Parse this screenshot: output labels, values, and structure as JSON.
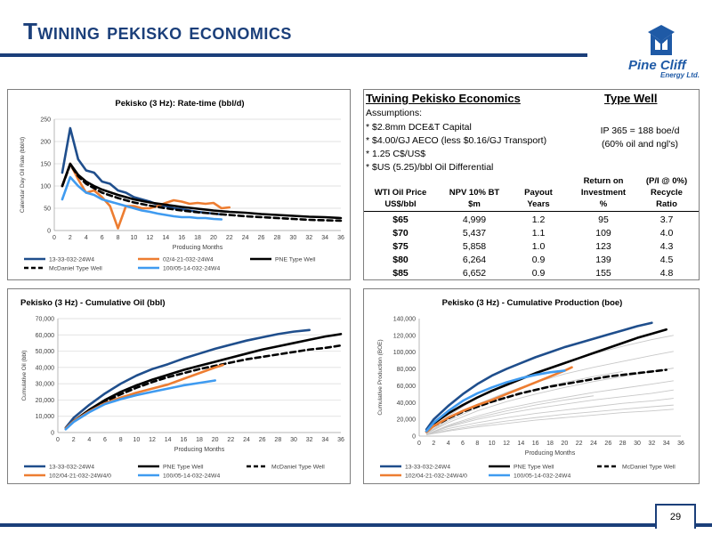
{
  "slide": {
    "title": "Twining pekisko economics",
    "page_number": "29",
    "logo_name": "Pine Cliff",
    "logo_sub": "Energy Ltd."
  },
  "colors": {
    "dark_blue": "#1f4e8c",
    "orange": "#ed7d31",
    "black": "#000000",
    "light_blue": "#3f9bf0",
    "grey": "#bfbfbf",
    "title_blue": "#1b3f7a"
  },
  "table": {
    "title": "Twining Pekisko Economics",
    "type_well_header": "Type Well",
    "assumptions": [
      "Assumptions:",
      "* $2.8mm DCE&T Capital",
      "* $4.00/GJ AECO (less $0.16/GJ Transport)",
      "* 1.25 C$/US$",
      "* $US (5.25)/bbl Oil Differential"
    ],
    "type_well_lines": [
      "IP 365 = 188 boe/d",
      "(60% oil and ngl's)"
    ],
    "col_headers": [
      [
        "",
        "WTI Oil Price",
        "US$/bbl"
      ],
      [
        "",
        "NPV 10% BT",
        "$m"
      ],
      [
        "",
        "Payout",
        "Years"
      ],
      [
        "Return on",
        "Investment",
        "%"
      ],
      [
        "(P/I @ 0%)",
        "Recycle",
        "Ratio"
      ]
    ],
    "rows": [
      [
        "$65",
        "4,999",
        "1.2",
        "95",
        "3.7"
      ],
      [
        "$70",
        "5,437",
        "1.1",
        "109",
        "4.0"
      ],
      [
        "$75",
        "5,858",
        "1.0",
        "123",
        "4.3"
      ],
      [
        "$80",
        "6,264",
        "0.9",
        "139",
        "4.5"
      ],
      [
        "$85",
        "6,652",
        "0.9",
        "155",
        "4.8"
      ]
    ]
  },
  "chart_data": [
    {
      "type": "line",
      "title": "Pekisko (3 Hz): Rate-time (bbl/d)",
      "xlabel": "Producing Months",
      "ylabel": "Calendar Day Oil Rate (bbl/d)",
      "xlim": [
        0,
        36
      ],
      "ylim": [
        0,
        250
      ],
      "xticks": [
        0,
        2,
        4,
        6,
        8,
        10,
        12,
        14,
        16,
        18,
        20,
        22,
        24,
        26,
        28,
        30,
        32,
        34,
        36
      ],
      "yticks": [
        0,
        50,
        100,
        150,
        200,
        250
      ],
      "grid": true,
      "legend_position": "bottom",
      "series": [
        {
          "name": "13-33-032-24W4",
          "color": "#1f4e8c",
          "dash": false,
          "x": [
            1,
            2,
            3,
            4,
            5,
            6,
            7,
            8,
            9,
            10,
            11,
            12,
            13,
            14,
            15,
            16,
            17,
            18,
            19,
            20,
            21
          ],
          "y": [
            130,
            230,
            160,
            135,
            130,
            110,
            105,
            90,
            85,
            75,
            70,
            65,
            58,
            55,
            50,
            48,
            45,
            42,
            40,
            38,
            36
          ]
        },
        {
          "name": "02/4-21-032-24W4",
          "color": "#ed7d31",
          "dash": false,
          "x": [
            1,
            2,
            3,
            4,
            5,
            6,
            7,
            8,
            9,
            10,
            11,
            12,
            13,
            14,
            15,
            16,
            17,
            18,
            19,
            20,
            21,
            22
          ],
          "y": [
            100,
            150,
            115,
            85,
            90,
            75,
            55,
            5,
            55,
            55,
            50,
            50,
            55,
            62,
            68,
            65,
            60,
            62,
            60,
            62,
            50,
            52
          ]
        },
        {
          "name": "PNE Type Well",
          "color": "#000000",
          "dash": false,
          "x": [
            1,
            2,
            3,
            4,
            5,
            6,
            8,
            10,
            12,
            14,
            16,
            18,
            20,
            22,
            24,
            26,
            28,
            30,
            32,
            34,
            36
          ],
          "y": [
            100,
            150,
            125,
            110,
            100,
            92,
            80,
            70,
            63,
            58,
            53,
            49,
            45,
            42,
            40,
            37,
            35,
            33,
            31,
            30,
            28
          ]
        },
        {
          "name": "McDaniel Type Well",
          "color": "#000000",
          "dash": true,
          "x": [
            1,
            2,
            3,
            4,
            5,
            6,
            8,
            10,
            12,
            14,
            16,
            18,
            20,
            22,
            24,
            26,
            28,
            30,
            32,
            34,
            36
          ],
          "y": [
            100,
            148,
            122,
            105,
            95,
            85,
            73,
            63,
            56,
            50,
            45,
            41,
            38,
            35,
            32,
            30,
            28,
            26,
            24,
            23,
            22
          ]
        },
        {
          "name": "100/05-14-032-24W4",
          "color": "#3f9bf0",
          "dash": false,
          "x": [
            1,
            2,
            3,
            4,
            5,
            6,
            7,
            8,
            9,
            10,
            11,
            12,
            13,
            14,
            15,
            16,
            17,
            18,
            19,
            20,
            21
          ],
          "y": [
            70,
            120,
            100,
            85,
            80,
            70,
            65,
            60,
            55,
            50,
            45,
            42,
            38,
            35,
            32,
            30,
            30,
            28,
            28,
            26,
            25
          ]
        }
      ]
    },
    {
      "type": "line",
      "title": "Pekisko (3 Hz) - Cumulative Oil (bbl)",
      "xlabel": "Producing Months",
      "ylabel": "Cumulative Oil (bbl)",
      "xlim": [
        0,
        36
      ],
      "ylim": [
        0,
        70000
      ],
      "xticks": [
        0,
        2,
        4,
        6,
        8,
        10,
        12,
        14,
        16,
        18,
        20,
        22,
        24,
        26,
        28,
        30,
        32,
        34,
        36
      ],
      "yticks": [
        0,
        10000,
        20000,
        30000,
        40000,
        50000,
        60000,
        70000
      ],
      "ytick_labels": [
        "0",
        "10,000",
        "20,000",
        "30,000",
        "40,000",
        "50,000",
        "60,000",
        "70,000"
      ],
      "grid": true,
      "legend_position": "bottom",
      "series": [
        {
          "name": "13-33-032-24W4",
          "color": "#1f4e8c",
          "dash": false,
          "x": [
            1,
            2,
            4,
            6,
            8,
            10,
            12,
            14,
            16,
            18,
            20,
            22,
            24,
            26,
            28,
            30,
            32
          ],
          "y": [
            3000,
            9000,
            17000,
            24000,
            30000,
            35000,
            39000,
            42000,
            45500,
            48500,
            51500,
            54000,
            56500,
            58500,
            60500,
            62000,
            63000
          ]
        },
        {
          "name": "PNE Type Well",
          "color": "#000000",
          "dash": false,
          "x": [
            1,
            2,
            4,
            6,
            8,
            10,
            12,
            14,
            16,
            18,
            20,
            22,
            24,
            26,
            28,
            30,
            32,
            34,
            36
          ],
          "y": [
            2500,
            7000,
            14000,
            20000,
            25000,
            29000,
            32500,
            35500,
            38500,
            41000,
            43500,
            46000,
            48500,
            51000,
            53000,
            55000,
            57000,
            59000,
            60500
          ]
        },
        {
          "name": "McDaniel Type Well",
          "color": "#000000",
          "dash": true,
          "x": [
            1,
            2,
            4,
            6,
            8,
            10,
            12,
            14,
            16,
            18,
            20,
            22,
            24,
            26,
            28,
            30,
            32,
            34,
            36
          ],
          "y": [
            2500,
            7000,
            13500,
            19000,
            23500,
            27500,
            31000,
            34000,
            36500,
            39000,
            41000,
            43000,
            45000,
            46500,
            48000,
            49500,
            51000,
            52000,
            53500
          ]
        },
        {
          "name": "102/04-21-032-24W4/0",
          "color": "#ed7d31",
          "dash": false,
          "x": [
            1,
            2,
            4,
            6,
            8,
            10,
            12,
            14,
            16,
            18,
            20,
            21
          ],
          "y": [
            2500,
            7000,
            13000,
            18000,
            21500,
            24500,
            27000,
            29500,
            33000,
            36500,
            40000,
            41500
          ]
        },
        {
          "name": "100/05-14-032-24W4",
          "color": "#3f9bf0",
          "dash": false,
          "x": [
            1,
            2,
            4,
            6,
            8,
            10,
            12,
            14,
            16,
            18,
            20
          ],
          "y": [
            2000,
            6500,
            12500,
            17500,
            20500,
            23000,
            25000,
            27000,
            29000,
            30500,
            32000
          ]
        }
      ]
    },
    {
      "type": "line",
      "title": "Pekisko (3 Hz) - Cumulative Production (boe)",
      "xlabel": "Producing Months",
      "ylabel": "Cumulative Production (BOE)",
      "xlim": [
        0,
        36
      ],
      "ylim": [
        0,
        140000
      ],
      "xticks": [
        0,
        2,
        4,
        6,
        8,
        10,
        12,
        14,
        16,
        18,
        20,
        22,
        24,
        26,
        28,
        30,
        32,
        34,
        36
      ],
      "yticks": [
        0,
        20000,
        40000,
        60000,
        80000,
        100000,
        120000,
        140000
      ],
      "ytick_labels": [
        "0",
        "20,000",
        "40,000",
        "60,000",
        "80,000",
        "100,000",
        "120,000",
        "140,000"
      ],
      "grid": false,
      "legend_position": "bottom",
      "series": [
        {
          "name": "13-33-032-24W4",
          "color": "#1f4e8c",
          "dash": false,
          "x": [
            1,
            2,
            4,
            6,
            8,
            10,
            12,
            14,
            16,
            18,
            20,
            22,
            24,
            26,
            28,
            30,
            32
          ],
          "y": [
            8000,
            20000,
            36000,
            50000,
            62000,
            72000,
            80000,
            87000,
            94000,
            100000,
            106000,
            111000,
            116000,
            121000,
            126000,
            131000,
            135000
          ]
        },
        {
          "name": "PNE Type Well",
          "color": "#000000",
          "dash": false,
          "x": [
            1,
            2,
            4,
            6,
            8,
            10,
            12,
            14,
            16,
            18,
            20,
            22,
            24,
            26,
            28,
            30,
            32,
            34
          ],
          "y": [
            6000,
            15000,
            27000,
            37000,
            46000,
            54000,
            61000,
            68000,
            75000,
            81000,
            87000,
            93000,
            99000,
            105000,
            111000,
            117000,
            122000,
            127000
          ]
        },
        {
          "name": "McDaniel Type Well",
          "color": "#000000",
          "dash": true,
          "x": [
            1,
            2,
            4,
            6,
            8,
            10,
            12,
            14,
            16,
            18,
            20,
            22,
            24,
            26,
            28,
            30,
            32,
            34
          ],
          "y": [
            5000,
            12000,
            21000,
            29000,
            35000,
            41000,
            46000,
            51000,
            55000,
            59000,
            62000,
            65000,
            68000,
            71000,
            73000,
            75000,
            77000,
            79000
          ]
        },
        {
          "name": "102/04-21-032-24W4/0",
          "color": "#ed7d31",
          "dash": false,
          "x": [
            1,
            2,
            4,
            6,
            8,
            10,
            12,
            14,
            16,
            18,
            20,
            21
          ],
          "y": [
            5000,
            12000,
            22000,
            30000,
            37000,
            43000,
            50000,
            57000,
            64000,
            71000,
            78000,
            82000
          ]
        },
        {
          "name": "100/05-14-032-24W4",
          "color": "#3f9bf0",
          "dash": false,
          "x": [
            1,
            2,
            4,
            6,
            8,
            10,
            12,
            14,
            16,
            18,
            20
          ],
          "y": [
            6000,
            16000,
            30000,
            42000,
            51000,
            58000,
            64000,
            69000,
            73000,
            76000,
            78000
          ]
        }
      ],
      "background_series": [
        {
          "x": [
            1,
            4,
            8,
            12,
            16,
            20,
            24,
            28,
            32,
            35
          ],
          "y": [
            4000,
            24000,
            46000,
            62000,
            76000,
            88000,
            98000,
            107000,
            115000,
            120000
          ]
        },
        {
          "x": [
            1,
            4,
            8,
            12,
            16,
            20,
            24,
            28,
            32,
            35
          ],
          "y": [
            3000,
            20000,
            38000,
            52000,
            64000,
            74000,
            82000,
            89000,
            96000,
            101000
          ]
        },
        {
          "x": [
            1,
            4,
            8,
            12,
            16,
            20,
            24,
            28,
            32,
            35
          ],
          "y": [
            3000,
            16000,
            30000,
            41000,
            50000,
            58000,
            65000,
            71000,
            77000,
            81000
          ]
        },
        {
          "x": [
            1,
            4,
            8,
            12,
            16,
            20,
            24,
            28,
            32,
            35
          ],
          "y": [
            2000,
            13000,
            24000,
            33000,
            40000,
            46000,
            52000,
            57000,
            62000,
            66000
          ]
        },
        {
          "x": [
            1,
            4,
            8,
            12,
            16,
            20,
            24,
            28,
            32,
            35
          ],
          "y": [
            2000,
            11000,
            20000,
            27000,
            33000,
            38000,
            43000,
            47000,
            51000,
            55000
          ]
        },
        {
          "x": [
            1,
            4,
            8,
            12,
            16,
            20,
            24,
            28,
            32,
            35
          ],
          "y": [
            2000,
            9000,
            16000,
            22000,
            27000,
            31000,
            35000,
            39000,
            42000,
            45000
          ]
        },
        {
          "x": [
            1,
            4,
            8,
            12,
            16,
            20,
            24,
            28,
            32,
            35
          ],
          "y": [
            1500,
            7000,
            13000,
            18000,
            22000,
            26000,
            29000,
            32000,
            35000,
            37000
          ]
        },
        {
          "x": [
            1,
            4,
            8,
            12,
            16,
            20,
            24,
            28,
            32,
            35
          ],
          "y": [
            1500,
            6000,
            11000,
            15000,
            19000,
            22000,
            25000,
            28000,
            30000,
            32000
          ]
        },
        {
          "x": [
            1,
            4,
            8,
            12,
            16,
            20,
            24,
            28
          ],
          "y": [
            3000,
            18000,
            34000,
            46000,
            56000,
            64000,
            71000,
            77000
          ]
        },
        {
          "x": [
            1,
            4,
            8,
            12,
            16,
            20,
            24
          ],
          "y": [
            2000,
            12000,
            22000,
            30000,
            37000,
            43000,
            48000
          ]
        }
      ]
    }
  ]
}
